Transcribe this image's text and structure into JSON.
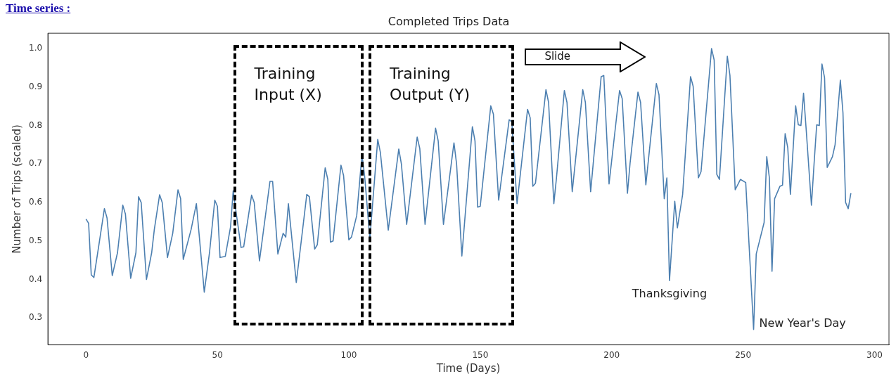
{
  "chart_data": {
    "type": "line",
    "title": "Completed Trips Data",
    "subtitle": "Time series :",
    "xlabel": "Time (Days)",
    "ylabel": "Number of Trips (scaled)",
    "xlim": [
      -14.5,
      305.5
    ],
    "ylim": [
      0.23,
      1.04
    ],
    "xticks": [
      0,
      50,
      100,
      150,
      200,
      250,
      300
    ],
    "yticks": [
      0.3,
      0.4,
      0.5,
      0.6,
      0.7,
      0.8,
      0.9,
      {
        "value": 1.0,
        "label": "1.0"
      }
    ],
    "marker": "none",
    "annotations": [
      "Training Input (X)",
      "Training Output (Y)",
      "Slide",
      {
        "text": "Thanksgiving",
        "x": 222,
        "y": 0.397
      },
      {
        "text": "New Year's Day",
        "x": 254,
        "y": 0.27
      }
    ],
    "series": [
      {
        "color": "#4c7fb0",
        "x": [
          0,
          1,
          2,
          3,
          5,
          7,
          8,
          10,
          12,
          14,
          15,
          17,
          19,
          20,
          21,
          23,
          25,
          26,
          28,
          29,
          31,
          33,
          35,
          36,
          37,
          40,
          42,
          45,
          47,
          49,
          50,
          51,
          53,
          55,
          56,
          57,
          59,
          60,
          63,
          64,
          66,
          70,
          71,
          73,
          75,
          76,
          77,
          80,
          81,
          84,
          85,
          87,
          88,
          91,
          92,
          93,
          94,
          97,
          98,
          100,
          101,
          103,
          105,
          106,
          108,
          111,
          112,
          115,
          119,
          120,
          122,
          126,
          127,
          129,
          133,
          134,
          136,
          140,
          141,
          143,
          147,
          148,
          149,
          150,
          154,
          155,
          157,
          161,
          162,
          164,
          168,
          169,
          170,
          171,
          175,
          176,
          178,
          179,
          182,
          183,
          185,
          189,
          190,
          192,
          196,
          197,
          199,
          203,
          204,
          206,
          207,
          210,
          211,
          213,
          217,
          218,
          220,
          221,
          222,
          224,
          225,
          227,
          230,
          231,
          233,
          234,
          238,
          239,
          240,
          241,
          244,
          245,
          247,
          249,
          251,
          254,
          255,
          258,
          259,
          260,
          261,
          262,
          264,
          265,
          266,
          267,
          268,
          270,
          271,
          272,
          273,
          274,
          276,
          277,
          278,
          279,
          280,
          281,
          282,
          284,
          285,
          287,
          288,
          289,
          290,
          291
        ],
        "values": [
          0.557,
          0.546,
          0.412,
          0.405,
          0.494,
          0.584,
          0.56,
          0.41,
          0.47,
          0.593,
          0.57,
          0.403,
          0.47,
          0.615,
          0.6,
          0.4,
          0.47,
          0.53,
          0.62,
          0.6,
          0.457,
          0.52,
          0.633,
          0.61,
          0.452,
          0.53,
          0.597,
          0.367,
          0.47,
          0.606,
          0.59,
          0.457,
          0.46,
          0.537,
          0.63,
          0.58,
          0.483,
          0.485,
          0.619,
          0.6,
          0.448,
          0.655,
          0.655,
          0.466,
          0.52,
          0.51,
          0.597,
          0.392,
          0.448,
          0.621,
          0.615,
          0.479,
          0.49,
          0.69,
          0.66,
          0.497,
          0.5,
          0.697,
          0.67,
          0.503,
          0.51,
          0.566,
          0.724,
          0.67,
          0.506,
          0.764,
          0.73,
          0.528,
          0.739,
          0.7,
          0.543,
          0.77,
          0.74,
          0.543,
          0.793,
          0.76,
          0.543,
          0.755,
          0.7,
          0.461,
          0.797,
          0.76,
          0.588,
          0.59,
          0.851,
          0.83,
          0.606,
          0.815,
          0.81,
          0.597,
          0.842,
          0.82,
          0.642,
          0.65,
          0.893,
          0.86,
          0.597,
          0.664,
          0.891,
          0.86,
          0.628,
          0.893,
          0.86,
          0.628,
          0.927,
          0.93,
          0.648,
          0.891,
          0.87,
          0.624,
          0.702,
          0.887,
          0.86,
          0.646,
          0.909,
          0.88,
          0.61,
          0.664,
          0.397,
          0.603,
          0.534,
          0.621,
          0.927,
          0.902,
          0.664,
          0.68,
          1.0,
          0.97,
          0.673,
          0.66,
          0.98,
          0.93,
          0.633,
          0.66,
          0.652,
          0.27,
          0.466,
          0.548,
          0.719,
          0.664,
          0.421,
          0.61,
          0.642,
          0.645,
          0.779,
          0.742,
          0.621,
          0.851,
          0.802,
          0.8,
          0.884,
          0.79,
          0.593,
          0.7,
          0.802,
          0.8,
          0.96,
          0.924,
          0.691,
          0.719,
          0.75,
          0.918,
          0.833,
          0.6,
          0.584,
          0.624
        ]
      }
    ]
  }
}
